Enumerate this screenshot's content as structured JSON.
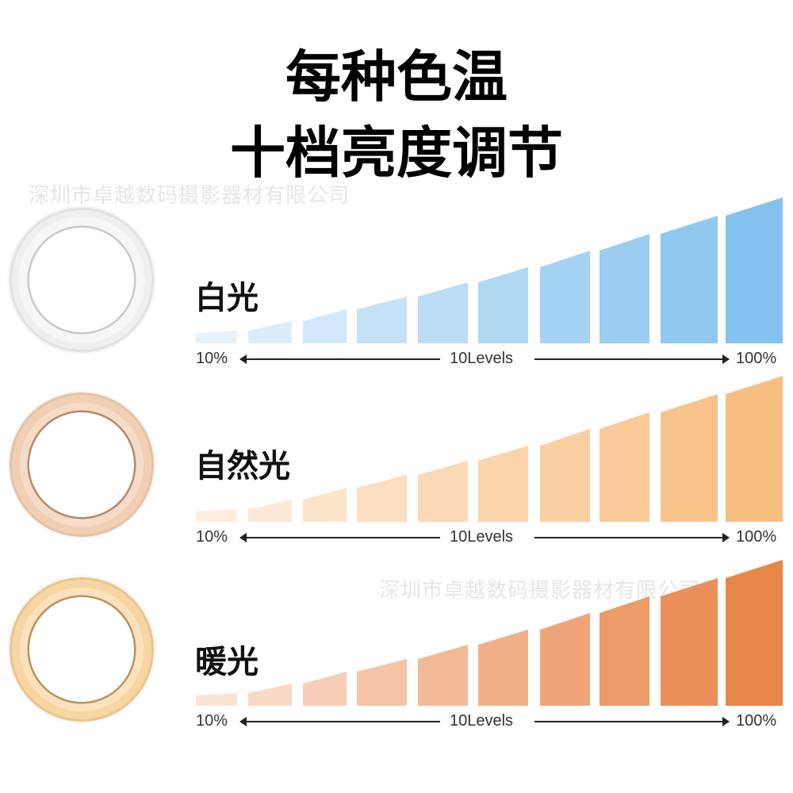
{
  "title_line1": "每种色温",
  "title_line2": "十档亮度调节",
  "watermark": "深圳市卓越数码摄影器材有限公司",
  "rows": [
    {
      "label": "白光",
      "levels": [
        10,
        20,
        30,
        40,
        50,
        60,
        70,
        80,
        90,
        100
      ],
      "color_light": "#e6f2fc",
      "color_dark": "#85c3ee",
      "min_text": "10%",
      "center_text": "10Levels",
      "max_text": "100%"
    },
    {
      "label": "自然光",
      "levels": [
        10,
        20,
        30,
        40,
        50,
        60,
        70,
        80,
        90,
        100
      ],
      "color_light": "#fdeee0",
      "color_dark": "#f9bf82",
      "min_text": "10%",
      "center_text": "10Levels",
      "max_text": "100%"
    },
    {
      "label": "暖光",
      "levels": [
        10,
        20,
        30,
        40,
        50,
        60,
        70,
        80,
        90,
        100
      ],
      "color_light": "#fbe3d6",
      "color_dark": "#e9864a",
      "min_text": "10%",
      "center_text": "10Levels",
      "max_text": "100%"
    }
  ]
}
